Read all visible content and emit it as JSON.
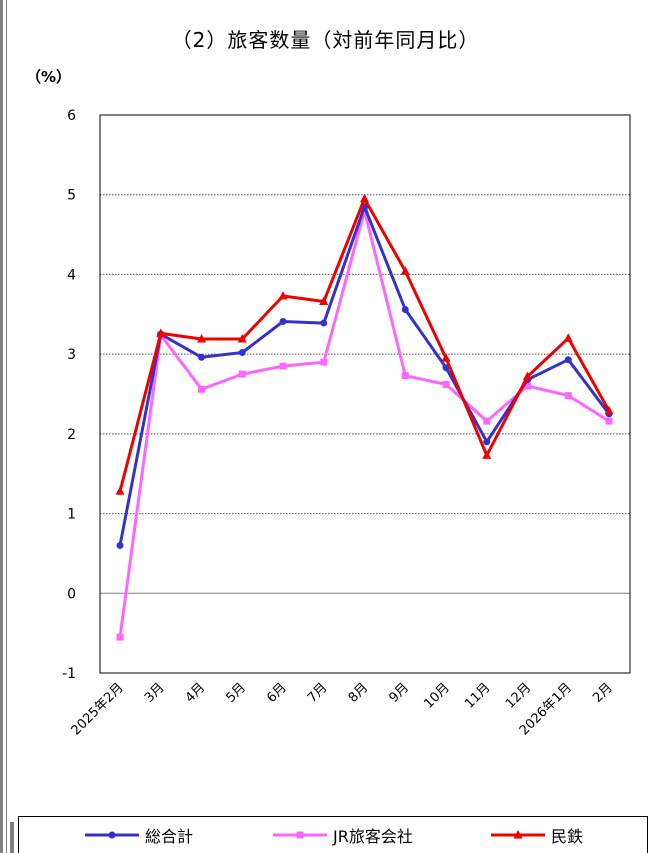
{
  "header": {
    "title": "（2）旅客数量（対前年同月比）",
    "unit": "（%）"
  },
  "chart_data": {
    "type": "line",
    "title": "（2）旅客数量（対前年同月比）",
    "ylabel": "（%）",
    "xlabel": "",
    "ylim": [
      -1,
      6
    ],
    "yticks": [
      "-1",
      "0",
      "1",
      "2",
      "3",
      "4",
      "5",
      "6"
    ],
    "grid": true,
    "legend_position": "bottom",
    "categories": [
      "2025年2月",
      "3月",
      "4月",
      "5月",
      "6月",
      "7月",
      "8月",
      "9月",
      "10月",
      "11月",
      "12月",
      "2026年1月",
      "2月"
    ],
    "series": [
      {
        "name": "総合計",
        "color": "#3333cc",
        "marker": "circle",
        "values": [
          0.6,
          3.25,
          2.96,
          3.02,
          3.41,
          3.39,
          4.85,
          3.56,
          2.83,
          1.9,
          2.68,
          2.93,
          2.25
        ]
      },
      {
        "name": "JR旅客会社",
        "color": "#ff66ff",
        "marker": "square",
        "values": [
          -0.55,
          3.24,
          2.56,
          2.75,
          2.85,
          2.9,
          4.8,
          2.73,
          2.62,
          2.16,
          2.6,
          2.48,
          2.16
        ]
      },
      {
        "name": "民鉄",
        "color": "#ee0000",
        "marker": "triangle",
        "values": [
          1.28,
          3.26,
          3.19,
          3.19,
          3.73,
          3.66,
          4.95,
          4.04,
          2.95,
          1.73,
          2.72,
          3.2,
          2.29
        ]
      }
    ]
  }
}
